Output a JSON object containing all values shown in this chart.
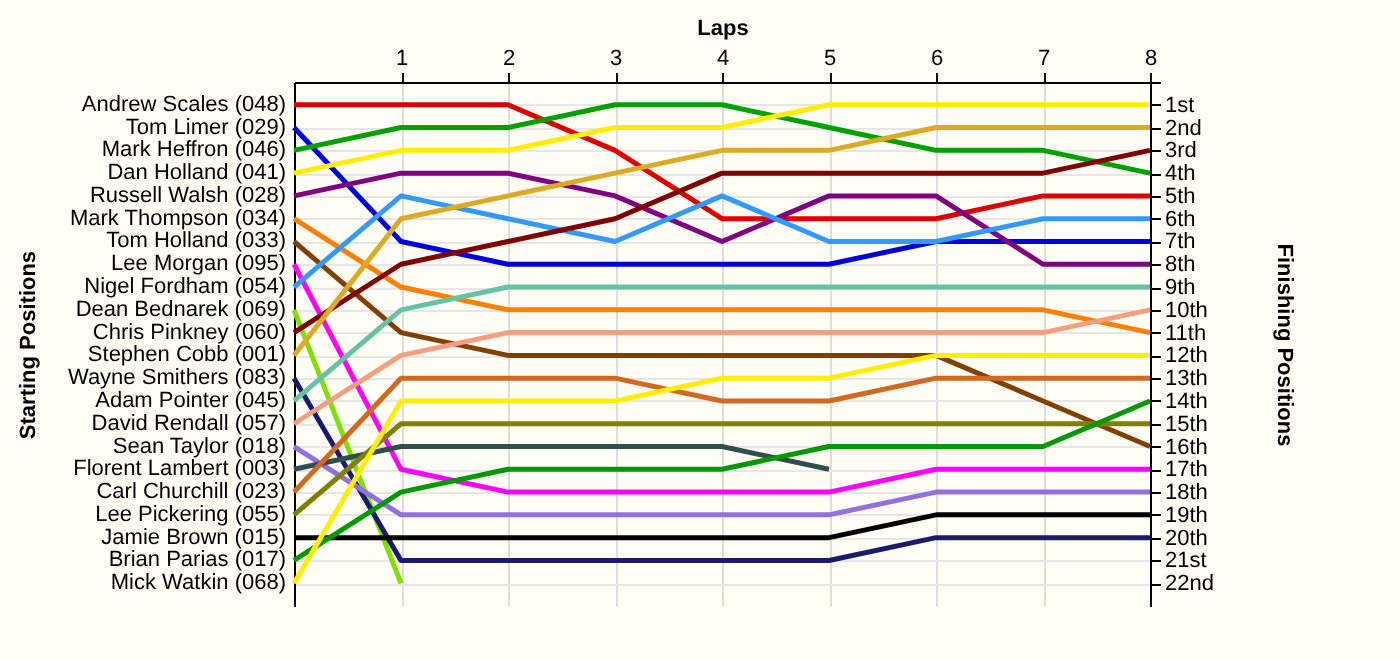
{
  "chart_data": {
    "type": "line",
    "xlabel": "Laps",
    "ylabel": "Finishing Positions",
    "x": [
      0,
      1,
      2,
      3,
      4,
      5,
      6,
      7,
      8
    ],
    "xlim": [
      0,
      8
    ],
    "xticks": [
      1,
      2,
      3,
      4,
      5,
      6,
      7,
      8
    ],
    "ylim": [
      23,
      0
    ],
    "yticks": [
      {
        "value": 0,
        "label": null
      },
      {
        "value": 1,
        "label": "1st"
      },
      {
        "value": 2,
        "label": "2nd"
      },
      {
        "value": 3,
        "label": "3rd"
      },
      {
        "value": 4,
        "label": "4th"
      },
      {
        "value": 5,
        "label": "5th"
      },
      {
        "value": 6,
        "label": "6th"
      },
      {
        "value": 7,
        "label": "7th"
      },
      {
        "value": 8,
        "label": "8th"
      },
      {
        "value": 9,
        "label": "9th"
      },
      {
        "value": 10,
        "label": "10th"
      },
      {
        "value": 11,
        "label": "11th"
      },
      {
        "value": 12,
        "label": "12th"
      },
      {
        "value": 13,
        "label": "13th"
      },
      {
        "value": 14,
        "label": "14th"
      },
      {
        "value": 15,
        "label": "15th"
      },
      {
        "value": 16,
        "label": "16th"
      },
      {
        "value": 17,
        "label": "17th"
      },
      {
        "value": 18,
        "label": "18th"
      },
      {
        "value": 19,
        "label": "19th"
      },
      {
        "value": 20,
        "label": "20th"
      },
      {
        "value": 21,
        "label": "21st"
      },
      {
        "value": 22,
        "label": "22nd"
      }
    ],
    "annotations": [
      "Starting Positions"
    ],
    "grid": true,
    "marker": "none",
    "line_style": "solid",
    "series": [
      {
        "name": "Andrew Scales (048)",
        "color": "#dd0000",
        "values": [
          1,
          1,
          1,
          3,
          6,
          6,
          6,
          5,
          5
        ]
      },
      {
        "name": "Tom Limer (029)",
        "color": "#0000dd",
        "values": [
          2,
          7,
          8,
          8,
          8,
          8,
          7,
          7,
          7
        ]
      },
      {
        "name": "Mark Heffron (046)",
        "color": "#00a000",
        "values": [
          3,
          2,
          2,
          1,
          1,
          2,
          3,
          3,
          4
        ]
      },
      {
        "name": "Dan Holland (041)",
        "color": "#ffee00",
        "values": [
          4,
          3,
          3,
          2,
          2,
          1,
          1,
          1,
          1
        ]
      },
      {
        "name": "Russell Walsh (028)",
        "color": "#800080",
        "values": [
          5,
          4,
          4,
          5,
          7,
          5,
          5,
          8,
          8
        ]
      },
      {
        "name": "Mark Thompson (034)",
        "color": "#ff8000",
        "values": [
          6,
          9,
          10,
          10,
          10,
          10,
          10,
          10,
          11
        ]
      },
      {
        "name": "Tom Holland (033)",
        "color": "#804000",
        "values": [
          7,
          11,
          12,
          12,
          12,
          12,
          12,
          14,
          16
        ]
      },
      {
        "name": "Lee Morgan (095)",
        "color": "#ff00ff",
        "values": [
          8,
          17,
          18,
          18,
          18,
          18,
          17,
          17,
          17
        ]
      },
      {
        "name": "Nigel Fordham (054)",
        "color": "#3399ff",
        "values": [
          9,
          5,
          6,
          7,
          5,
          7,
          7,
          6,
          6
        ]
      },
      {
        "name": "Dean Bednarek (069)",
        "color": "#80e000",
        "values": [
          10,
          22,
          null,
          null,
          null,
          null,
          null,
          null,
          null
        ]
      },
      {
        "name": "Chris Pinkney (060)",
        "color": "#800000",
        "values": [
          11,
          8,
          7,
          6,
          4,
          4,
          4,
          4,
          3
        ]
      },
      {
        "name": "Stephen Cobb (001)",
        "color": "#ddaa22",
        "values": [
          12,
          6,
          5,
          4,
          3,
          3,
          2,
          2,
          2
        ]
      },
      {
        "name": "Wayne Smithers (083)",
        "color": "#1a1a6e",
        "values": [
          13,
          21,
          21,
          21,
          21,
          21,
          20,
          20,
          20
        ]
      },
      {
        "name": "Adam Pointer (045)",
        "color": "#66c2a5",
        "values": [
          14,
          10,
          9,
          9,
          9,
          9,
          9,
          9,
          9
        ]
      },
      {
        "name": "David Rendall (057)",
        "color": "#f4a080",
        "values": [
          15,
          12,
          11,
          11,
          11,
          11,
          11,
          11,
          10
        ]
      },
      {
        "name": "Sean Taylor (018)",
        "color": "#9370db",
        "values": [
          16,
          19,
          19,
          19,
          19,
          19,
          18,
          18,
          18
        ]
      },
      {
        "name": "Florent Lambert (003)",
        "color": "#2f4f4f",
        "values": [
          17,
          16,
          16,
          16,
          16,
          17,
          null,
          null,
          null
        ]
      },
      {
        "name": "Carl Churchill (023)",
        "color": "#d2691e",
        "values": [
          18,
          13,
          13,
          13,
          14,
          14,
          13,
          13,
          13
        ]
      },
      {
        "name": "Lee Pickering (055)",
        "color": "#808000",
        "values": [
          19,
          15,
          15,
          15,
          15,
          15,
          15,
          15,
          15
        ]
      },
      {
        "name": "Jamie Brown (015)",
        "color": "#000000",
        "values": [
          20,
          20,
          20,
          20,
          20,
          20,
          19,
          19,
          19
        ]
      },
      {
        "name": "Brian Parias (017)",
        "color": "#009900",
        "values": [
          21,
          18,
          17,
          17,
          17,
          16,
          16,
          16,
          14
        ]
      },
      {
        "name": "Mick Watkin (068)",
        "color": "#ffee00",
        "values": [
          22,
          14,
          14,
          14,
          13,
          13,
          12,
          12,
          12
        ]
      }
    ]
  }
}
